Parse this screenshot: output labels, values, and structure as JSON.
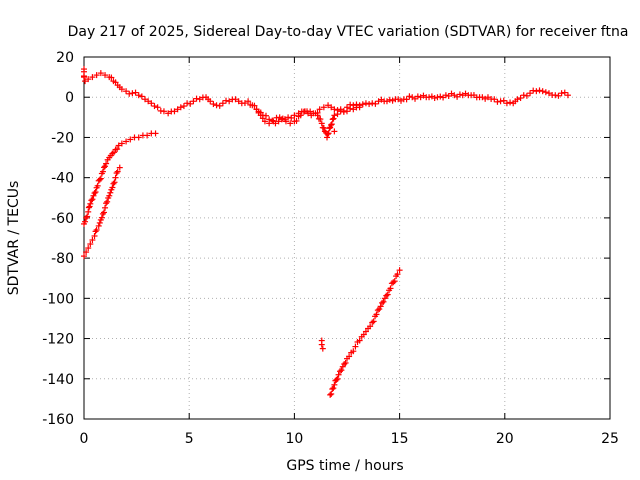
{
  "chart_data": {
    "type": "scatter",
    "title": "Day 217 of 2025, Sidereal Day-to-day VTEC variation (SDTVAR) for receiver ftna",
    "xlabel": "GPS time / hours",
    "ylabel": "SDTVAR / TECUs",
    "xlim": [
      0,
      25
    ],
    "ylim": [
      -160,
      20
    ],
    "x_ticks": [
      "0",
      "5",
      "10",
      "15",
      "20",
      "25"
    ],
    "y_ticks": [
      "20",
      "0",
      "-20",
      "-40",
      "-60",
      "-80",
      "-100",
      "-120",
      "-140",
      "-160"
    ],
    "grid": true,
    "marker": "plus",
    "color": "#ff0000",
    "series": [
      {
        "points": [
          [
            0.0,
            14
          ],
          [
            0.0,
            10
          ],
          [
            0.05,
            8
          ],
          [
            0.2,
            9
          ],
          [
            0.4,
            10
          ],
          [
            0.6,
            11
          ],
          [
            0.8,
            12
          ],
          [
            1.0,
            11
          ],
          [
            1.2,
            10
          ],
          [
            1.4,
            8
          ],
          [
            1.6,
            6
          ],
          [
            1.8,
            4
          ],
          [
            2.0,
            3
          ],
          [
            2.3,
            2
          ],
          [
            2.6,
            1
          ],
          [
            2.9,
            -1
          ],
          [
            3.2,
            -3
          ],
          [
            3.5,
            -5
          ],
          [
            3.8,
            -7
          ],
          [
            4.0,
            -8
          ],
          [
            4.3,
            -7
          ],
          [
            4.6,
            -5
          ],
          [
            4.9,
            -3
          ],
          [
            5.2,
            -2
          ],
          [
            5.5,
            -1
          ],
          [
            5.8,
            0
          ],
          [
            6.0,
            -2
          ],
          [
            6.3,
            -4
          ],
          [
            6.6,
            -3
          ],
          [
            6.9,
            -2
          ],
          [
            7.2,
            -1
          ],
          [
            7.5,
            -3
          ],
          [
            7.8,
            -2
          ],
          [
            8.0,
            -4
          ],
          [
            8.2,
            -6
          ],
          [
            8.4,
            -9
          ],
          [
            8.6,
            -12
          ],
          [
            8.8,
            -13
          ],
          [
            9.0,
            -12
          ],
          [
            9.3,
            -10
          ],
          [
            9.6,
            -12
          ],
          [
            9.8,
            -13
          ],
          [
            10.0,
            -12
          ],
          [
            10.3,
            -9
          ],
          [
            10.6,
            -7
          ],
          [
            10.9,
            -8
          ],
          [
            11.1,
            -9
          ],
          [
            11.3,
            -13
          ],
          [
            11.45,
            -17
          ],
          [
            11.55,
            -20
          ],
          [
            11.7,
            -15
          ],
          [
            11.9,
            -9
          ],
          [
            12.2,
            -7
          ],
          [
            12.5,
            -5
          ],
          [
            12.8,
            -4
          ],
          [
            13.1,
            -4
          ],
          [
            13.4,
            -3
          ],
          [
            13.7,
            -3
          ],
          [
            14.0,
            -2
          ],
          [
            14.4,
            -2
          ],
          [
            14.8,
            -1
          ],
          [
            15.2,
            -1
          ],
          [
            15.6,
            0
          ],
          [
            16.0,
            0
          ],
          [
            16.4,
            0
          ],
          [
            16.8,
            0
          ],
          [
            17.2,
            1
          ],
          [
            17.6,
            1
          ],
          [
            18.0,
            1
          ],
          [
            18.4,
            1
          ],
          [
            18.8,
            0
          ],
          [
            19.2,
            0
          ],
          [
            19.5,
            -1
          ],
          [
            19.8,
            -2
          ],
          [
            20.1,
            -3
          ],
          [
            20.4,
            -3
          ],
          [
            20.6,
            -1
          ],
          [
            20.9,
            1
          ],
          [
            21.2,
            2
          ],
          [
            21.5,
            3
          ],
          [
            21.8,
            3
          ],
          [
            22.1,
            2
          ],
          [
            22.4,
            1
          ],
          [
            22.7,
            2
          ],
          [
            23.0,
            1
          ]
        ]
      },
      {
        "points": [
          [
            8.2,
            -6
          ],
          [
            8.5,
            -9
          ],
          [
            8.8,
            -11
          ],
          [
            9.1,
            -13
          ],
          [
            9.4,
            -11
          ],
          [
            9.7,
            -10
          ],
          [
            10.0,
            -9
          ],
          [
            10.2,
            -8
          ],
          [
            10.5,
            -7
          ],
          [
            10.8,
            -9
          ],
          [
            11.0,
            -8
          ],
          [
            11.2,
            -6
          ],
          [
            11.4,
            -5
          ],
          [
            11.6,
            -4
          ],
          [
            11.9,
            -6
          ],
          [
            12.2,
            -6
          ],
          [
            12.5,
            -7
          ],
          [
            12.8,
            -6
          ],
          [
            13.1,
            -5
          ]
        ]
      },
      {
        "points": [
          [
            11.9,
            -17
          ]
        ]
      },
      {
        "points": [
          [
            0.0,
            -63
          ],
          [
            0.1,
            -60
          ],
          [
            0.2,
            -57
          ],
          [
            0.3,
            -53
          ],
          [
            0.45,
            -49
          ],
          [
            0.6,
            -45
          ],
          [
            0.75,
            -41
          ],
          [
            0.9,
            -37
          ],
          [
            1.05,
            -33
          ],
          [
            1.2,
            -30
          ],
          [
            1.35,
            -28
          ],
          [
            1.5,
            -26
          ],
          [
            1.65,
            -24
          ],
          [
            1.8,
            -23
          ],
          [
            2.0,
            -22
          ],
          [
            2.2,
            -21
          ],
          [
            2.4,
            -20
          ],
          [
            2.6,
            -20
          ],
          [
            2.8,
            -19
          ],
          [
            3.0,
            -19
          ],
          [
            3.2,
            -18
          ],
          [
            3.4,
            -18
          ]
        ]
      },
      {
        "points": [
          [
            0.0,
            -79
          ],
          [
            0.1,
            -77
          ],
          [
            0.2,
            -75
          ],
          [
            0.3,
            -73
          ],
          [
            0.4,
            -71
          ],
          [
            0.5,
            -69
          ],
          [
            0.6,
            -66
          ],
          [
            0.7,
            -64
          ],
          [
            0.8,
            -61
          ],
          [
            0.9,
            -58
          ],
          [
            1.0,
            -55
          ],
          [
            1.1,
            -52
          ],
          [
            1.2,
            -49
          ],
          [
            1.3,
            -46
          ],
          [
            1.4,
            -43
          ],
          [
            1.5,
            -40
          ],
          [
            1.6,
            -37
          ],
          [
            1.7,
            -35
          ]
        ]
      },
      {
        "points": [
          [
            11.3,
            -121
          ],
          [
            11.3,
            -123
          ],
          [
            11.35,
            -125
          ]
        ]
      },
      {
        "points": [
          [
            11.7,
            -148
          ],
          [
            11.9,
            -143
          ],
          [
            12.1,
            -138
          ],
          [
            12.3,
            -134
          ],
          [
            12.5,
            -130
          ],
          [
            12.7,
            -127
          ],
          [
            12.9,
            -124
          ],
          [
            13.1,
            -121
          ],
          [
            13.3,
            -118
          ],
          [
            13.5,
            -115
          ],
          [
            13.7,
            -112
          ],
          [
            13.9,
            -108
          ],
          [
            14.1,
            -104
          ],
          [
            14.3,
            -100
          ],
          [
            14.5,
            -96
          ],
          [
            14.7,
            -92
          ],
          [
            14.9,
            -88
          ],
          [
            15.0,
            -86
          ]
        ]
      }
    ]
  }
}
